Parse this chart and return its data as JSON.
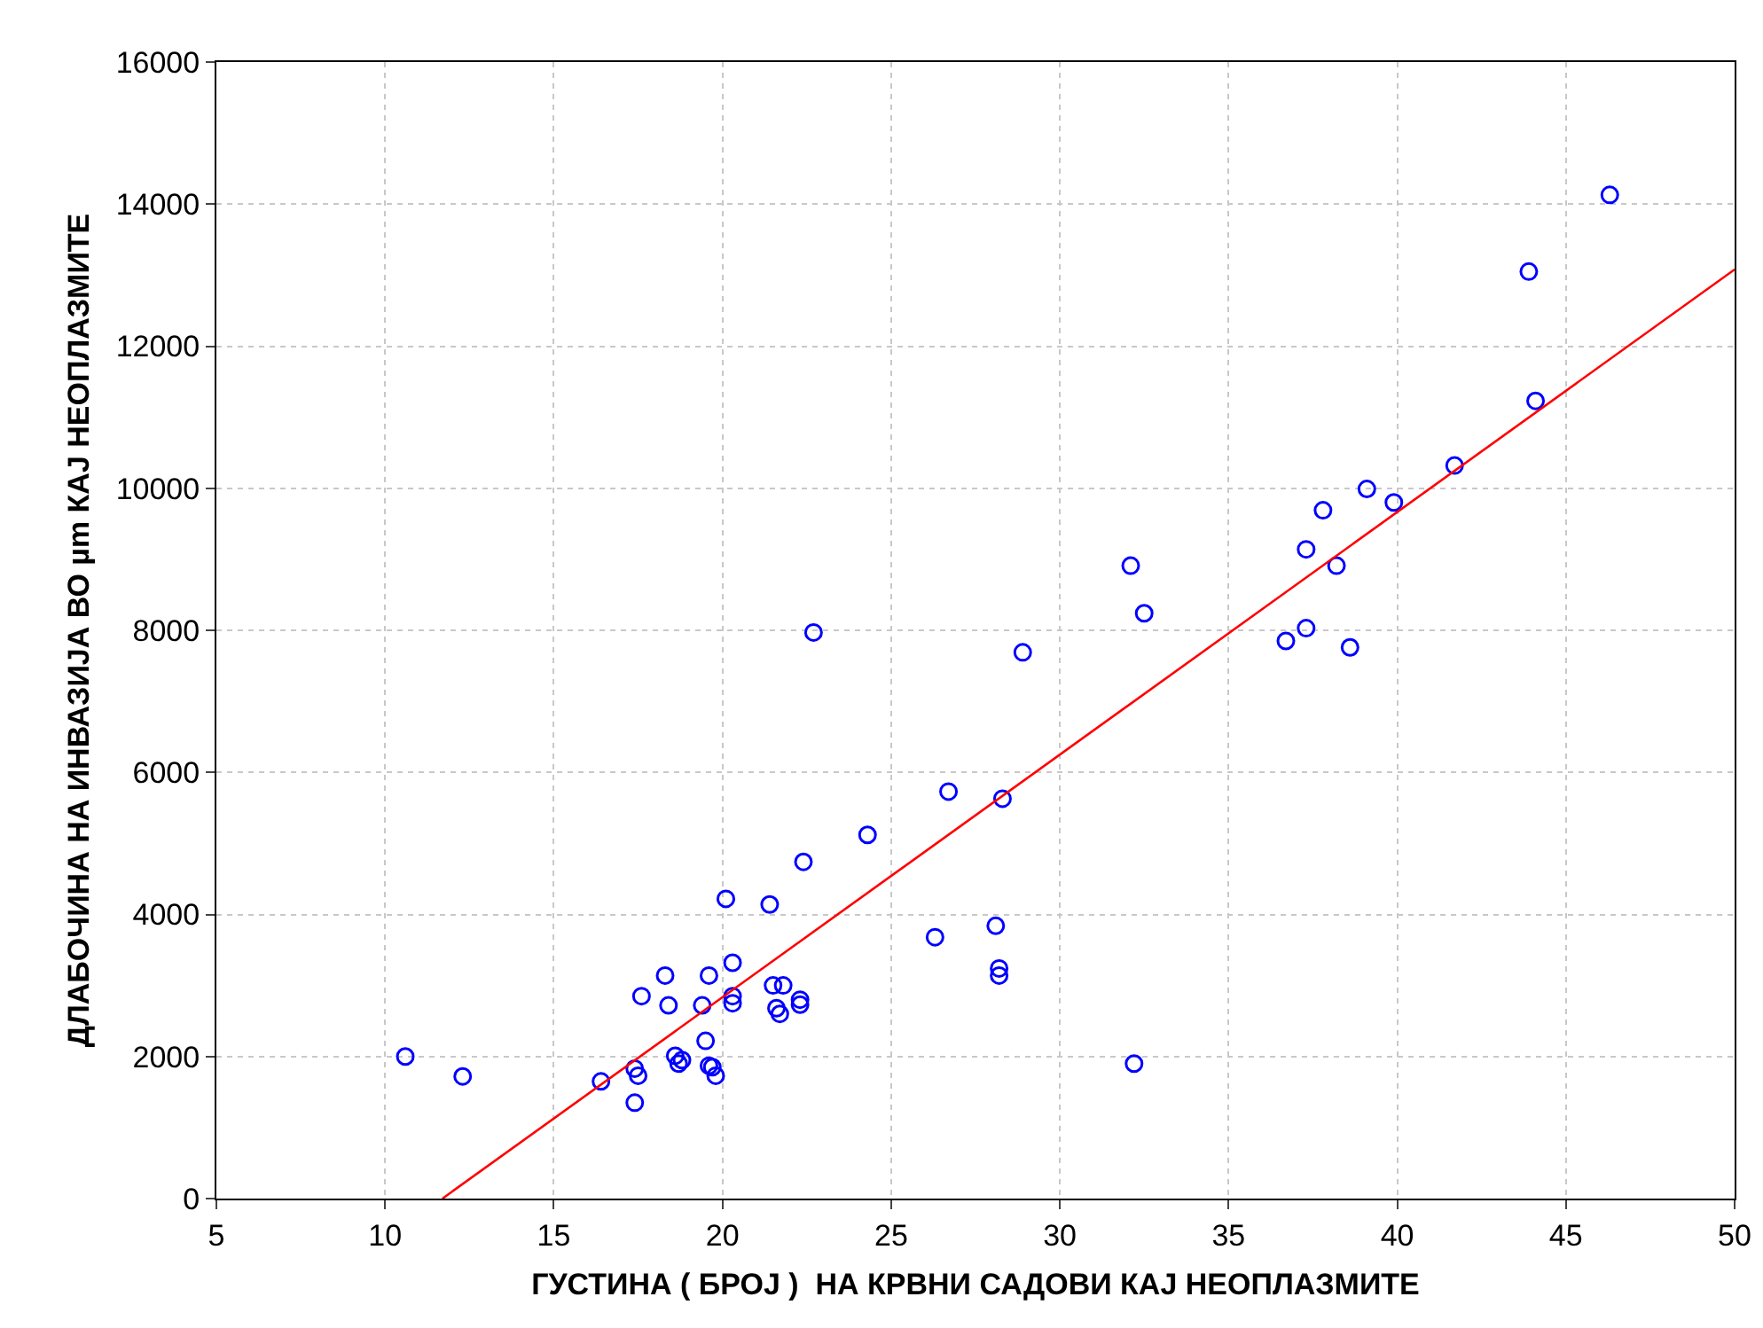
{
  "chart_data": {
    "type": "scatter",
    "xlabel": "ГУСТИНА ( БРОЈ )  НА КРВНИ САДОВИ КАЈ НЕОПЛАЗМИТЕ",
    "ylabel": "ДЛАБОЧИНА НА ИНВАЗИЈА ВО µm КАЈ НЕОПЛАЗМИТЕ",
    "xlim": [
      5,
      50
    ],
    "xticks": [
      5,
      10,
      15,
      20,
      25,
      30,
      35,
      40,
      45,
      50
    ],
    "ylim": [
      0,
      16000
    ],
    "yticks": [
      0,
      2000,
      4000,
      6000,
      8000,
      10000,
      12000,
      14000,
      16000
    ],
    "grid": true,
    "marker": "circle",
    "series": [
      {
        "color": "#0000ff",
        "x": [
          10.6,
          12.3,
          16.4,
          17.4,
          17.4,
          17.5,
          17.6,
          18.3,
          18.4,
          18.6,
          18.7,
          18.8,
          19.4,
          19.5,
          19.6,
          19.6,
          19.7,
          19.8,
          20.1,
          20.3,
          20.3,
          20.3,
          21.4,
          21.5,
          21.8,
          21.6,
          21.7,
          22.3,
          22.3,
          22.4,
          22.7,
          24.3,
          26.3,
          26.7,
          28.1,
          28.2,
          28.2,
          28.3,
          28.9,
          32.1,
          32.5,
          32.2,
          46.3,
          43.9,
          44.1,
          41.7,
          39.1,
          39.9,
          37.8,
          37.3,
          38.2,
          37.3,
          36.7,
          38.6
        ],
        "values": [
          2000,
          1720,
          1650,
          1350,
          1830,
          1730,
          2850,
          3140,
          2720,
          2010,
          1900,
          1950,
          2720,
          2220,
          3140,
          1870,
          1850,
          1730,
          4220,
          3320,
          2850,
          2750,
          4140,
          3000,
          3000,
          2680,
          2600,
          2800,
          2730,
          4740,
          7970,
          5120,
          3680,
          5730,
          3840,
          3240,
          3140,
          5630,
          7690,
          8910,
          8240,
          1900,
          14130,
          13050,
          11230,
          10320,
          9990,
          9800,
          9690,
          9140,
          8910,
          8030,
          7850,
          7760
        ]
      },
      {
        "type": "line",
        "color": "#ff0000",
        "marker": "none",
        "x": [
          11.7,
          50
        ],
        "values": [
          0,
          13080
        ]
      }
    ]
  }
}
